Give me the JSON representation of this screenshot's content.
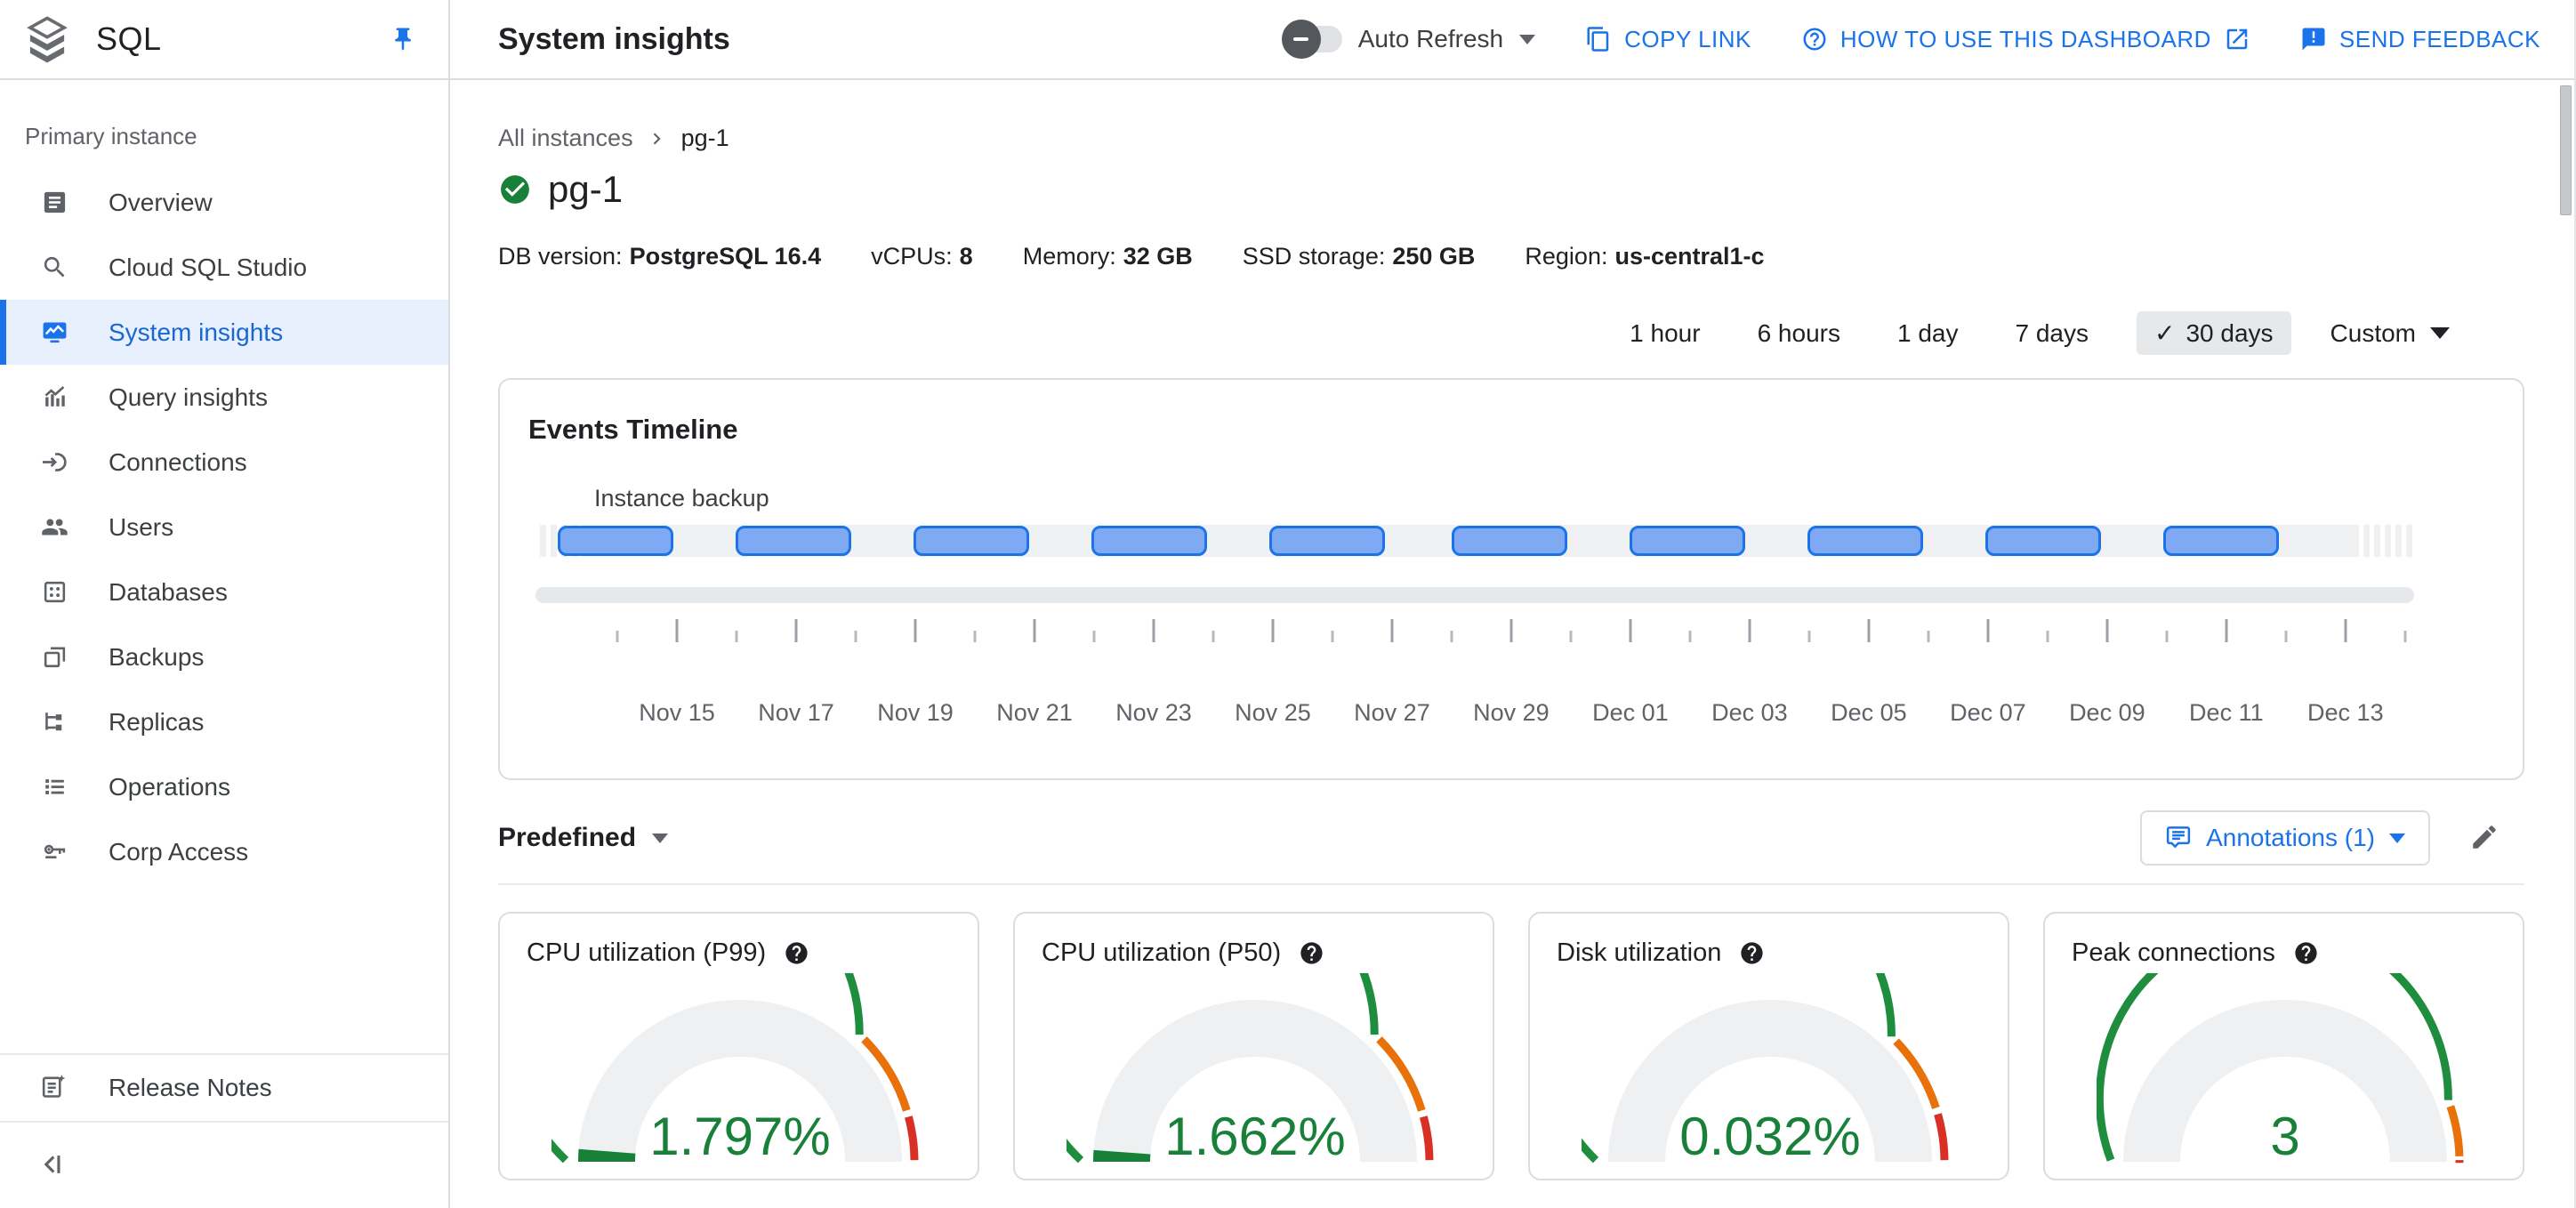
{
  "app": {
    "product_name": "SQL"
  },
  "sidebar": {
    "section_label": "Primary instance",
    "items": [
      {
        "label": "Overview",
        "icon": "overview-icon",
        "selected": false
      },
      {
        "label": "Cloud SQL Studio",
        "icon": "sql-studio-icon",
        "selected": false
      },
      {
        "label": "System insights",
        "icon": "system-insights-icon",
        "selected": true
      },
      {
        "label": "Query insights",
        "icon": "query-insights-icon",
        "selected": false
      },
      {
        "label": "Connections",
        "icon": "connections-icon",
        "selected": false
      },
      {
        "label": "Users",
        "icon": "users-icon",
        "selected": false
      },
      {
        "label": "Databases",
        "icon": "databases-icon",
        "selected": false
      },
      {
        "label": "Backups",
        "icon": "backups-icon",
        "selected": false
      },
      {
        "label": "Replicas",
        "icon": "replicas-icon",
        "selected": false
      },
      {
        "label": "Operations",
        "icon": "operations-icon",
        "selected": false
      },
      {
        "label": "Corp Access",
        "icon": "corp-access-icon",
        "selected": false
      }
    ],
    "release_notes_label": "Release Notes"
  },
  "header": {
    "title": "System insights",
    "auto_refresh_label": "Auto Refresh",
    "auto_refresh_state": "off",
    "copy_link_label": "COPY LINK",
    "how_to_label": "HOW TO USE THIS DASHBOARD",
    "feedback_label": "SEND FEEDBACK"
  },
  "instance": {
    "breadcrumb_root": "All instances",
    "breadcrumb_current": "pg-1",
    "name": "pg-1",
    "status": "healthy",
    "specs": [
      {
        "label": "DB version:",
        "value": "PostgreSQL 16.4"
      },
      {
        "label": "vCPUs:",
        "value": "8"
      },
      {
        "label": "Memory:",
        "value": "32 GB"
      },
      {
        "label": "SSD storage:",
        "value": "250 GB"
      },
      {
        "label": "Region:",
        "value": "us-central1-c"
      }
    ]
  },
  "time_range": {
    "options": [
      "1 hour",
      "6 hours",
      "1 day",
      "7 days",
      "30 days"
    ],
    "selected": "30 days",
    "selected_check": "✓",
    "custom_label": "Custom"
  },
  "events_timeline": {
    "title": "Events Timeline",
    "series_label": "Instance backup",
    "axis_labels": [
      "Nov 15",
      "Nov 17",
      "Nov 19",
      "Nov 21",
      "Nov 23",
      "Nov 25",
      "Nov 27",
      "Nov 29",
      "Dec 01",
      "Dec 03",
      "Dec 05",
      "Dec 07",
      "Dec 09",
      "Dec 11",
      "Dec 13"
    ],
    "axis_first_center_pct": 7.53,
    "axis_step_pct": 6.344,
    "pill_left_pct": [
      1.18,
      10.65,
      20.12,
      29.59,
      39.06,
      48.77,
      58.24,
      67.71,
      77.18,
      86.65
    ],
    "pill_width_pct": 6.16
  },
  "metrics": {
    "predefined_label": "Predefined",
    "annotations_label": "Annotations (1)"
  },
  "colors": {
    "accent_blue": "#1a73e8",
    "selected_nav_blue": "#1967d2",
    "gauge_green": "#1e8e3e",
    "gauge_value_green": "#188038",
    "gauge_orange": "#e8710a",
    "gauge_red": "#d93025",
    "pill_fill": "#7fa9f2",
    "pill_border": "#1a73e8"
  },
  "chart_data": [
    {
      "type": "timeline",
      "title": "Events Timeline",
      "series": [
        {
          "name": "Instance backup",
          "events_count": 10,
          "approx_event_dates": [
            "Nov 14",
            "Nov 17",
            "Nov 20",
            "Nov 23",
            "Nov 26",
            "Nov 29",
            "Dec 02",
            "Dec 05",
            "Dec 08",
            "Dec 11"
          ],
          "approx_event_duration_days": 2
        }
      ],
      "x_ticks": [
        "Nov 15",
        "Nov 17",
        "Nov 19",
        "Nov 21",
        "Nov 23",
        "Nov 25",
        "Nov 27",
        "Nov 29",
        "Dec 01",
        "Dec 03",
        "Dec 05",
        "Dec 07",
        "Dec 09",
        "Dec 11",
        "Dec 13"
      ],
      "x_range_label": "30 days"
    },
    {
      "type": "gauge",
      "title": "CPU utilization (P99)",
      "display_value": "1.797%",
      "value": 1.797,
      "unit": "%",
      "value_fraction": 0.025,
      "green_end": 0.74,
      "orange_end": 0.905
    },
    {
      "type": "gauge",
      "title": "CPU utilization (P50)",
      "display_value": "1.662%",
      "value": 1.662,
      "unit": "%",
      "value_fraction": 0.023,
      "green_end": 0.74,
      "orange_end": 0.905
    },
    {
      "type": "gauge",
      "title": "Disk utilization",
      "display_value": "0.032%",
      "value": 0.032,
      "unit": "%",
      "value_fraction": 0.0015,
      "green_end": 0.745,
      "orange_end": 0.9
    },
    {
      "type": "gauge",
      "title": "Peak connections",
      "display_value": "3",
      "value": 3,
      "unit": "connections",
      "value_fraction": 0.001,
      "green_end": 0.885,
      "orange_end": 0.99
    }
  ]
}
